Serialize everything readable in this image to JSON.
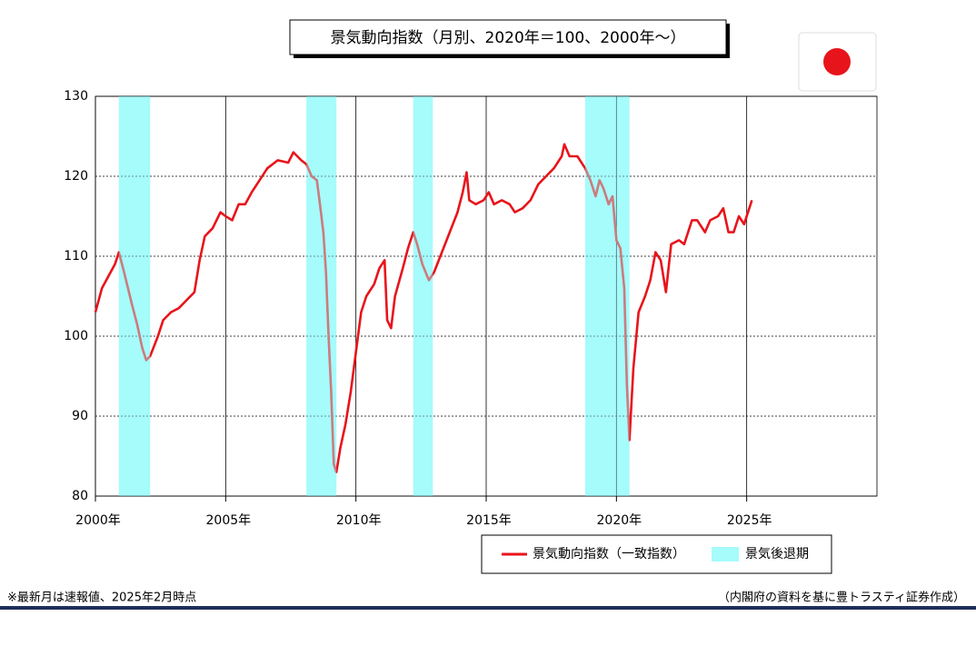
{
  "chart_data": {
    "type": "line",
    "title": "景気動向指数（月別、2020年＝100、2000年～）",
    "note": "※最新月は速報値、2025年2月時点",
    "source": "（内閣府の資料を基に豊トラスティ証券作成）",
    "x": [
      2000.0,
      2000.25,
      2000.5,
      2000.75,
      2000.9,
      2001.1,
      2001.4,
      2001.6,
      2001.8,
      2001.95,
      2002.1,
      2002.4,
      2002.6,
      2002.9,
      2003.2,
      2003.5,
      2003.8,
      2004.0,
      2004.2,
      2004.5,
      2004.8,
      2005.0,
      2005.25,
      2005.5,
      2005.75,
      2006.0,
      2006.3,
      2006.6,
      2007.0,
      2007.4,
      2007.6,
      2007.9,
      2008.1,
      2008.3,
      2008.5,
      2008.6,
      2008.75,
      2008.85,
      2008.95,
      2009.05,
      2009.15,
      2009.25,
      2009.4,
      2009.6,
      2009.8,
      2010.0,
      2010.2,
      2010.4,
      2010.7,
      2010.9,
      2011.1,
      2011.2,
      2011.35,
      2011.5,
      2011.8,
      2012.0,
      2012.2,
      2012.35,
      2012.55,
      2012.8,
      2013.0,
      2013.3,
      2013.6,
      2013.9,
      2014.1,
      2014.25,
      2014.35,
      2014.6,
      2014.9,
      2015.1,
      2015.3,
      2015.6,
      2015.9,
      2016.1,
      2016.4,
      2016.7,
      2017.0,
      2017.3,
      2017.6,
      2017.9,
      2018.0,
      2018.2,
      2018.5,
      2018.8,
      2019.0,
      2019.2,
      2019.35,
      2019.5,
      2019.7,
      2019.85,
      2020.0,
      2020.15,
      2020.3,
      2020.4,
      2020.5,
      2020.65,
      2020.85,
      2021.1,
      2021.3,
      2021.5,
      2021.7,
      2021.9,
      2022.1,
      2022.4,
      2022.6,
      2022.9,
      2023.1,
      2023.4,
      2023.6,
      2023.9,
      2024.1,
      2024.3,
      2024.5,
      2024.7,
      2024.9,
      2025.1,
      2025.2
    ],
    "series": [
      {
        "name": "景気動向指数（一致指数）",
        "color": "#e8141b",
        "values": [
          103,
          106,
          107.5,
          109,
          110.5,
          108,
          104,
          101.5,
          98.5,
          97,
          97.5,
          100,
          102,
          103,
          103.5,
          104.5,
          105.5,
          109.5,
          112.5,
          113.5,
          115.5,
          115,
          114.5,
          116.5,
          116.5,
          118,
          119.5,
          121,
          122,
          121.7,
          123,
          122,
          121.5,
          120,
          119.5,
          117,
          113,
          108,
          100,
          93,
          84,
          83,
          86,
          89,
          93,
          98,
          103,
          105,
          106.5,
          108.5,
          109.5,
          102,
          101,
          105,
          108.5,
          111,
          113,
          111.5,
          109,
          107,
          108,
          110.5,
          113,
          115.5,
          118,
          120.5,
          117,
          116.5,
          117,
          118,
          116.5,
          117,
          116.5,
          115.5,
          116,
          117,
          119,
          120,
          121,
          122.5,
          124,
          122.5,
          122.5,
          121,
          119.5,
          117.5,
          119.5,
          118.5,
          116.5,
          117.5,
          112,
          111,
          106,
          94,
          87,
          96,
          103,
          105,
          107,
          110.5,
          109.5,
          105.5,
          111.5,
          112,
          111.5,
          114.5,
          114.5,
          113,
          114.5,
          115,
          116,
          113,
          113,
          115,
          114,
          116,
          117
        ]
      }
    ],
    "shading": {
      "name": "景気後退期",
      "color": "#a6fbfb",
      "periods": [
        [
          2000.9,
          2002.1
        ],
        [
          2008.1,
          2009.25
        ],
        [
          2012.2,
          2012.95
        ],
        [
          2018.8,
          2020.5
        ]
      ]
    },
    "xlim": [
      2000,
      2030
    ],
    "xticks": [
      {
        "value": 2000,
        "label": "2000年"
      },
      {
        "value": 2005,
        "label": "2005年"
      },
      {
        "value": 2010,
        "label": "2010年"
      },
      {
        "value": 2015,
        "label": "2015年"
      },
      {
        "value": 2020,
        "label": "2020年"
      },
      {
        "value": 2025,
        "label": "2025年"
      }
    ],
    "ylim": [
      80,
      130
    ],
    "yticks": [
      80,
      90,
      100,
      110,
      120,
      130
    ],
    "grid": true
  }
}
